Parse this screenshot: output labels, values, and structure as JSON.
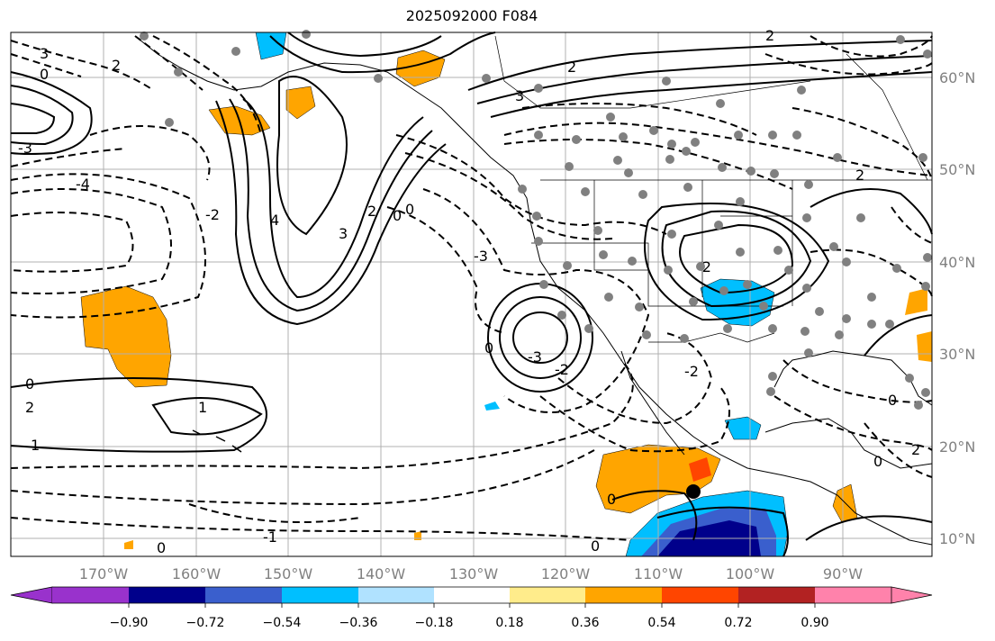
{
  "title": "2025092000 F084",
  "map": {
    "lon_labels": [
      "170°W",
      "160°W",
      "150°W",
      "140°W",
      "130°W",
      "120°W",
      "110°W",
      "100°W",
      "90°W"
    ],
    "lat_labels": [
      "60°N",
      "50°N",
      "40°N",
      "30°N",
      "20°N",
      "10°N"
    ],
    "label_color": "#808080",
    "contour_labels": [
      "3",
      "2",
      "0",
      "-1",
      "-2",
      "-3",
      "-4",
      "4",
      "1",
      "0",
      "2",
      "3",
      "-2",
      "-3",
      "-1",
      "0",
      "-1",
      "-2",
      "0",
      "1",
      "2",
      "-2",
      "-3"
    ],
    "station_marker_color": "#808080",
    "storm_marker_color": "#000000"
  },
  "colorbar": {
    "ticks": [
      "−0.90",
      "−0.72",
      "−0.54",
      "−0.36",
      "−0.18",
      "0.18",
      "0.36",
      "0.54",
      "0.72",
      "0.90"
    ],
    "colors": [
      "#9932CC",
      "#00008B",
      "#3A5FCD",
      "#00BFFF",
      "#B0E2FF",
      "#FFFFFF",
      "#FFEC8B",
      "#FFA500",
      "#FF4500",
      "#B22222",
      "#FF82AB"
    ]
  }
}
